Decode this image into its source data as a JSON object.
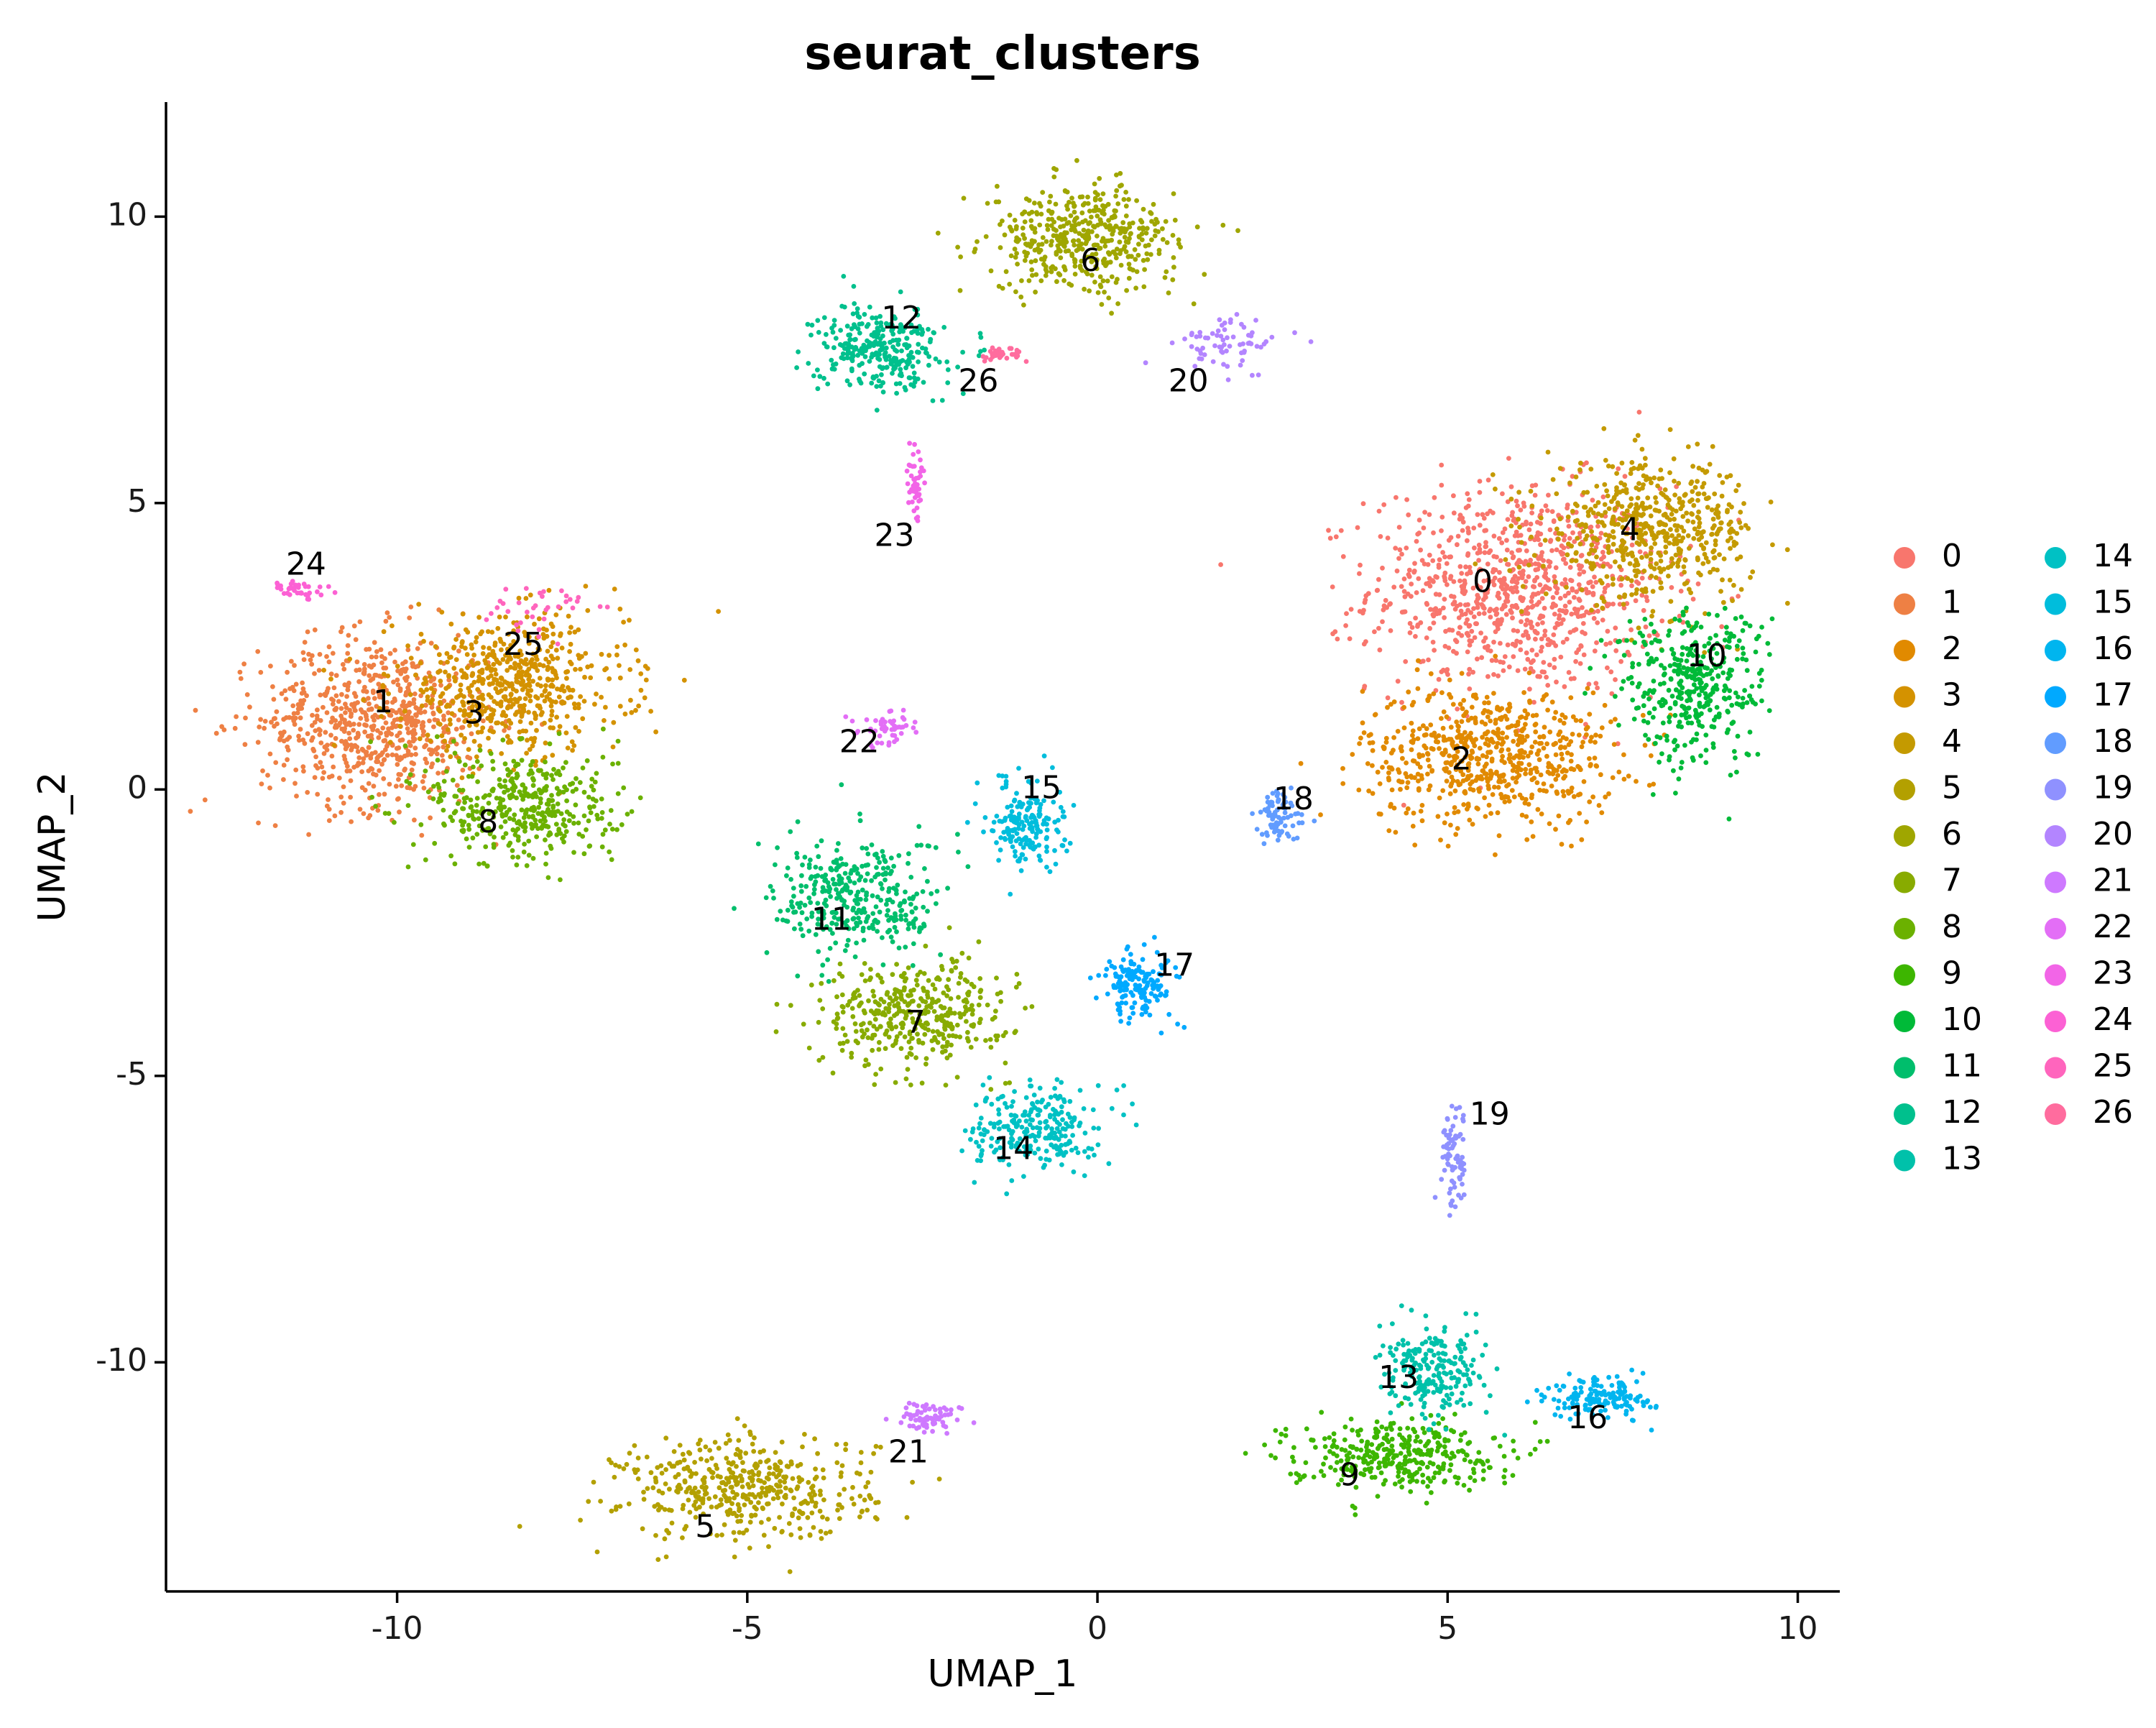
{
  "chart_data": {
    "type": "scatter",
    "title": "seurat_clusters",
    "xlabel": "UMAP_1",
    "ylabel": "UMAP_2",
    "xlim": [
      -13.3,
      10.6
    ],
    "ylim": [
      -14.0,
      12.0
    ],
    "x_ticks": [
      {
        "value": -10,
        "label": "-10"
      },
      {
        "value": -5,
        "label": "-5"
      },
      {
        "value": 0,
        "label": "0"
      },
      {
        "value": 5,
        "label": "5"
      },
      {
        "value": 10,
        "label": "10"
      }
    ],
    "y_ticks": [
      {
        "value": -10,
        "label": "-10"
      },
      {
        "value": -5,
        "label": "-5"
      },
      {
        "value": 0,
        "label": "0"
      },
      {
        "value": 5,
        "label": "5"
      },
      {
        "value": 10,
        "label": "10"
      }
    ],
    "grid": false,
    "legend": {
      "position": "right",
      "columns": 2
    },
    "clusters": [
      {
        "id": "0",
        "color": "#F8766D",
        "label_x": 5.5,
        "label_y": 3.6,
        "cx": 6.0,
        "cy": 3.5,
        "sx": 1.4,
        "sy": 1.2,
        "n": 900
      },
      {
        "id": "1",
        "color": "#EE8044",
        "label_x": -10.2,
        "label_y": 1.5,
        "cx": -10.3,
        "cy": 1.2,
        "sx": 1.1,
        "sy": 1.0,
        "n": 700
      },
      {
        "id": "2",
        "color": "#E18A00",
        "label_x": 5.2,
        "label_y": 0.5,
        "cx": 5.6,
        "cy": 0.6,
        "sx": 1.2,
        "sy": 0.8,
        "n": 650
      },
      {
        "id": "3",
        "color": "#D49200",
        "label_x": -8.9,
        "label_y": 1.3,
        "cx": -8.4,
        "cy": 1.8,
        "sx": 1.1,
        "sy": 0.8,
        "n": 600
      },
      {
        "id": "4",
        "color": "#C49A00",
        "label_x": 7.6,
        "label_y": 4.5,
        "cx": 7.9,
        "cy": 4.5,
        "sx": 1.0,
        "sy": 0.8,
        "n": 550
      },
      {
        "id": "5",
        "color": "#B3A000",
        "label_x": -5.6,
        "label_y": -12.9,
        "cx": -5.0,
        "cy": -12.2,
        "sx": 1.2,
        "sy": 0.6,
        "n": 450
      },
      {
        "id": "6",
        "color": "#9FA600",
        "label_x": -0.1,
        "label_y": 9.2,
        "cx": -0.2,
        "cy": 9.6,
        "sx": 0.9,
        "sy": 0.6,
        "n": 450
      },
      {
        "id": "7",
        "color": "#88AB00",
        "label_x": -2.6,
        "label_y": -4.1,
        "cx": -2.6,
        "cy": -3.9,
        "sx": 0.9,
        "sy": 0.6,
        "n": 400
      },
      {
        "id": "8",
        "color": "#6BB100",
        "label_x": -8.7,
        "label_y": -0.6,
        "cx": -8.2,
        "cy": -0.3,
        "sx": 0.9,
        "sy": 0.7,
        "n": 400
      },
      {
        "id": "9",
        "color": "#3DB600",
        "label_x": 3.6,
        "label_y": -12.0,
        "cx": 4.2,
        "cy": -11.6,
        "sx": 1.0,
        "sy": 0.4,
        "n": 350
      },
      {
        "id": "10",
        "color": "#00BA38",
        "label_x": 8.7,
        "label_y": 2.3,
        "cx": 8.5,
        "cy": 1.8,
        "sx": 0.7,
        "sy": 0.9,
        "n": 380
      },
      {
        "id": "11",
        "color": "#00BE6C",
        "label_x": -3.8,
        "label_y": -2.3,
        "cx": -3.4,
        "cy": -1.9,
        "sx": 0.8,
        "sy": 0.7,
        "n": 350
      },
      {
        "id": "12",
        "color": "#00C08D",
        "label_x": -2.8,
        "label_y": 8.2,
        "cx": -3.1,
        "cy": 7.7,
        "sx": 0.6,
        "sy": 0.5,
        "n": 300
      },
      {
        "id": "13",
        "color": "#00C1AA",
        "label_x": 4.3,
        "label_y": -10.3,
        "cx": 4.8,
        "cy": -10.2,
        "sx": 0.5,
        "sy": 0.5,
        "n": 220
      },
      {
        "id": "14",
        "color": "#00C1C4",
        "label_x": -1.2,
        "label_y": -6.3,
        "cx": -0.9,
        "cy": -5.9,
        "sx": 0.6,
        "sy": 0.5,
        "n": 250
      },
      {
        "id": "15",
        "color": "#00BDDC",
        "label_x": -0.8,
        "label_y": 0.0,
        "cx": -1.0,
        "cy": -0.6,
        "sx": 0.35,
        "sy": 0.5,
        "n": 180
      },
      {
        "id": "16",
        "color": "#00B5EF",
        "label_x": 7.0,
        "label_y": -11.0,
        "cx": 7.2,
        "cy": -10.6,
        "sx": 0.5,
        "sy": 0.25,
        "n": 150
      },
      {
        "id": "17",
        "color": "#00A9FF",
        "label_x": 1.1,
        "label_y": -3.1,
        "cx": 0.6,
        "cy": -3.4,
        "sx": 0.35,
        "sy": 0.4,
        "n": 160
      },
      {
        "id": "18",
        "color": "#619CFF",
        "label_x": 2.8,
        "label_y": -0.2,
        "cx": 2.6,
        "cy": -0.5,
        "sx": 0.25,
        "sy": 0.3,
        "n": 80
      },
      {
        "id": "19",
        "color": "#8F91FF",
        "label_x": 5.6,
        "label_y": -5.7,
        "cx": 5.1,
        "cy": -6.4,
        "sx": 0.12,
        "sy": 0.6,
        "n": 80
      },
      {
        "id": "20",
        "color": "#B385FF",
        "label_x": 1.3,
        "label_y": 7.1,
        "cx": 1.9,
        "cy": 7.8,
        "sx": 0.5,
        "sy": 0.3,
        "n": 70
      },
      {
        "id": "21",
        "color": "#CE79FF",
        "label_x": -2.7,
        "label_y": -11.6,
        "cx": -2.4,
        "cy": -11.0,
        "sx": 0.3,
        "sy": 0.2,
        "n": 70
      },
      {
        "id": "22",
        "color": "#E36EF6",
        "label_x": -3.4,
        "label_y": 0.8,
        "cx": -3.0,
        "cy": 1.1,
        "sx": 0.3,
        "sy": 0.2,
        "n": 50
      },
      {
        "id": "23",
        "color": "#F265E7",
        "label_x": -2.9,
        "label_y": 4.4,
        "cx": -2.6,
        "cy": 5.3,
        "sx": 0.08,
        "sy": 0.6,
        "n": 45
      },
      {
        "id": "24",
        "color": "#FC61D4",
        "label_x": -11.3,
        "label_y": 3.9,
        "cx": -11.4,
        "cy": 3.5,
        "sx": 0.3,
        "sy": 0.1,
        "n": 35
      },
      {
        "id": "25",
        "color": "#FF65BD",
        "label_x": -8.2,
        "label_y": 2.5,
        "cx": -8.0,
        "cy": 3.2,
        "sx": 0.5,
        "sy": 0.3,
        "n": 35
      },
      {
        "id": "26",
        "color": "#FF6C9E",
        "label_x": -1.7,
        "label_y": 7.1,
        "cx": -1.4,
        "cy": 7.6,
        "sx": 0.2,
        "sy": 0.1,
        "n": 30
      }
    ]
  }
}
